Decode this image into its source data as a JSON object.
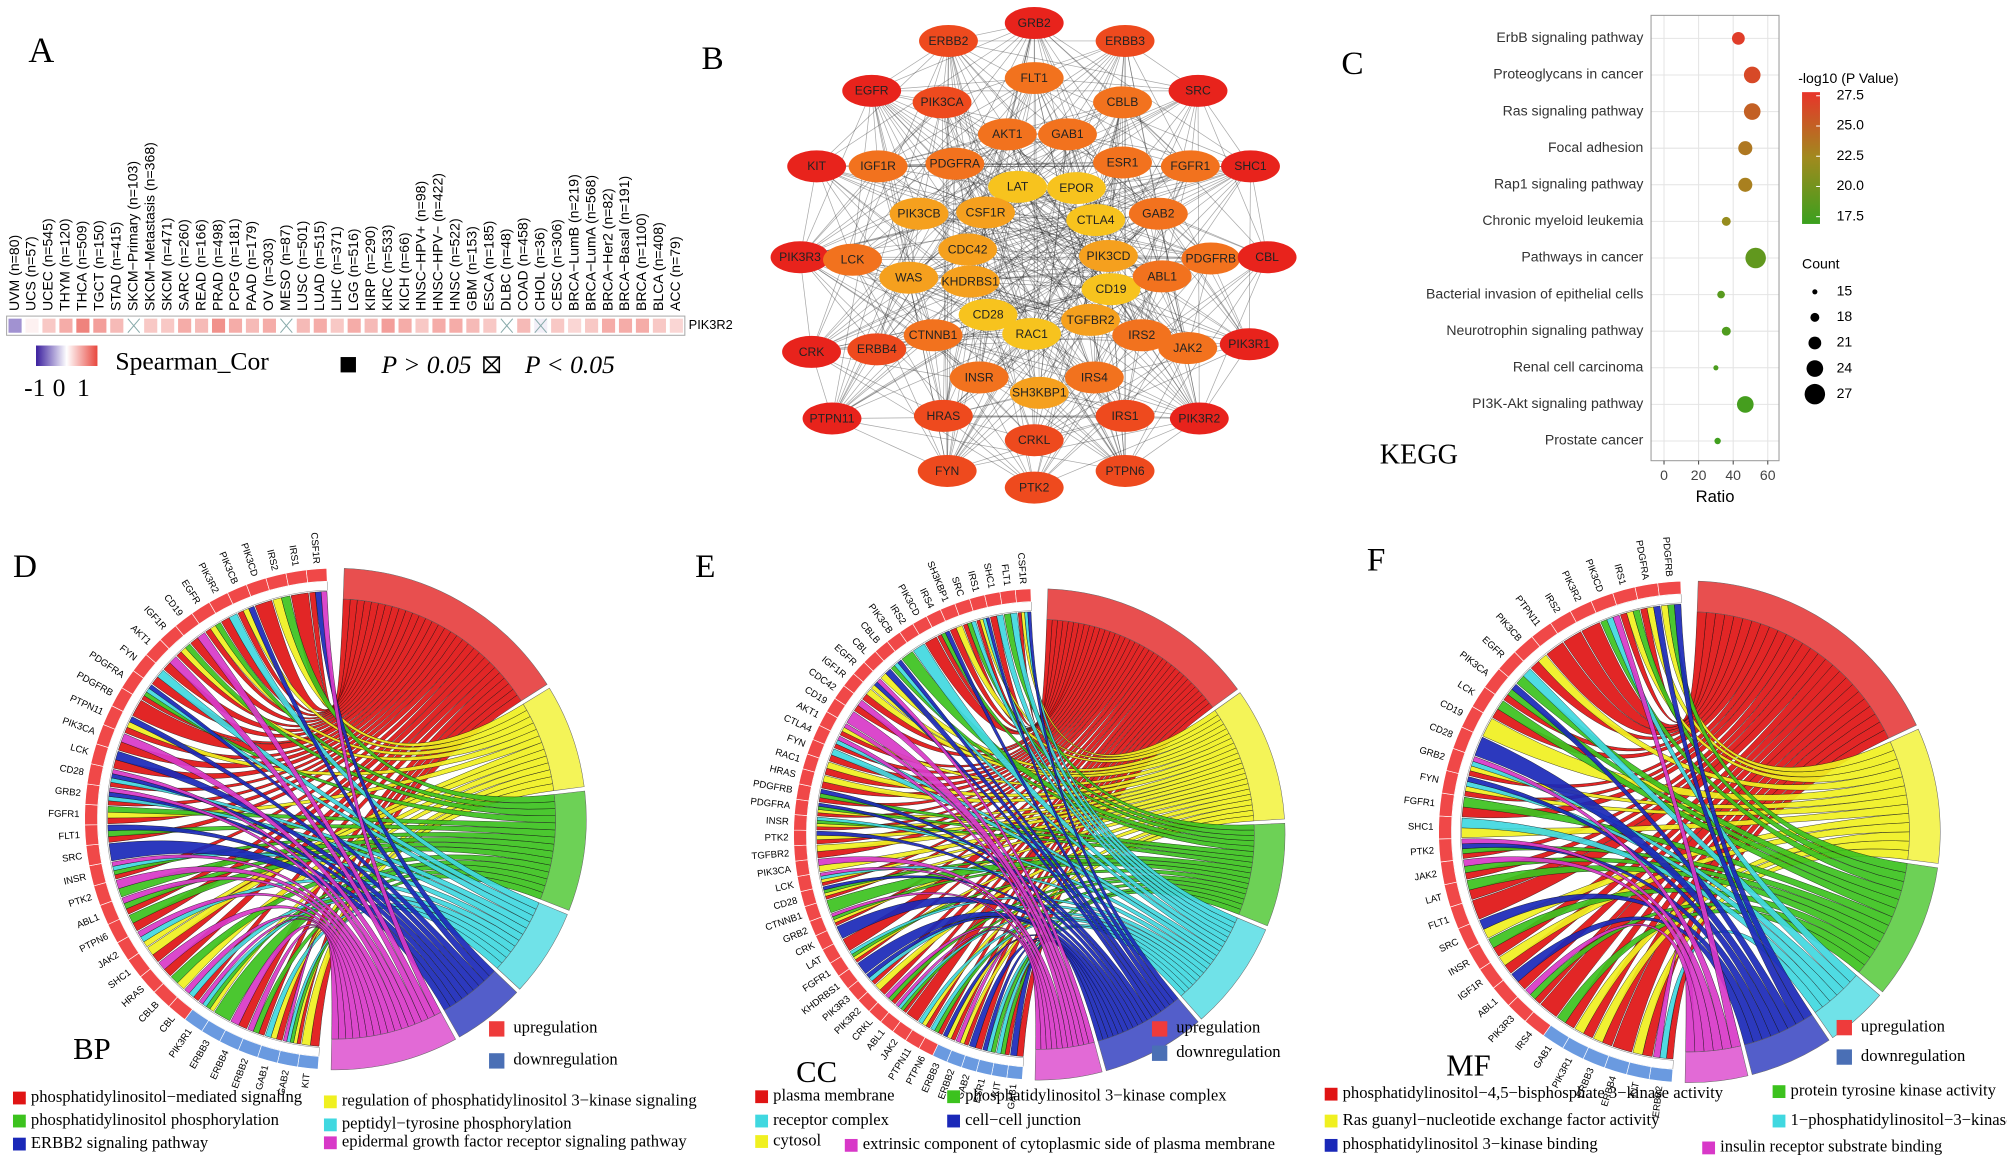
{
  "panel_labels": [
    "A",
    "B",
    "C",
    "D",
    "E",
    "F"
  ],
  "heatmap": {
    "row": "PIK3R2",
    "columns": [
      "UVM (n=80)",
      "UCS (n=57)",
      "UCEC (n=545)",
      "THYM (n=120)",
      "THCA (n=509)",
      "TGCT (n=150)",
      "STAD (n=415)",
      "SKCM−Primary (n=103)",
      "SKCM−Metastasis (n=368)",
      "SKCM (n=471)",
      "SARC (n=260)",
      "READ (n=166)",
      "PRAD (n=498)",
      "PCPG (n=181)",
      "PAAD (n=179)",
      "OV (n=303)",
      "MESO (n=87)",
      "LUSC (n=501)",
      "LUAD (n=515)",
      "LIHC (n=371)",
      "LGG (n=516)",
      "KIRP (n=290)",
      "KIRC (n=533)",
      "KICH (n=66)",
      "HNSC−HPV+ (n=98)",
      "HNSC−HPV− (n=422)",
      "HNSC (n=522)",
      "GBM (n=153)",
      "ESCA (n=185)",
      "DLBC (n=48)",
      "COAD (n=458)",
      "CHOL (n=36)",
      "CESC (n=306)",
      "BRCA−LumB (n=219)",
      "BRCA−LumA (n=568)",
      "BRCA−Her2 (n=82)",
      "BRCA−Basal (n=191)",
      "BRCA (n=1100)",
      "BLCA (n=408)",
      "ACC (n=79)"
    ],
    "values": [
      -0.35,
      0.05,
      0.2,
      0.3,
      0.45,
      0.35,
      0.25,
      0.02,
      0.2,
      0.2,
      0.3,
      0.25,
      0.4,
      0.3,
      0.25,
      0.3,
      0.05,
      0.25,
      0.3,
      0.2,
      0.3,
      0.25,
      0.35,
      0.3,
      0.2,
      0.3,
      0.3,
      0.25,
      0.2,
      0.05,
      0.25,
      -0.1,
      0.2,
      0.15,
      0.2,
      0.3,
      0.3,
      0.3,
      0.2,
      0.15
    ],
    "p_lt_005": [
      false,
      false,
      false,
      false,
      false,
      false,
      false,
      true,
      false,
      false,
      false,
      false,
      false,
      false,
      false,
      false,
      true,
      false,
      false,
      false,
      false,
      false,
      false,
      false,
      false,
      false,
      false,
      false,
      false,
      true,
      false,
      true,
      false,
      false,
      false,
      false,
      false,
      false,
      false,
      false
    ],
    "legend_title": "Spearman_Cor",
    "scale_ticks": [
      -1,
      0,
      1
    ],
    "p_labels": [
      "P > 0.05",
      "P < 0.05"
    ]
  },
  "network": {
    "nodes": [
      {
        "label": "GRB2",
        "color": "#e8231c"
      },
      {
        "label": "ERBB2",
        "color": "#ee4a1e"
      },
      {
        "label": "ERBB3",
        "color": "#ee4a1e"
      },
      {
        "label": "FLT1",
        "color": "#f2721e"
      },
      {
        "label": "EGFR",
        "color": "#e8231c"
      },
      {
        "label": "PIK3CA",
        "color": "#ee4a1e"
      },
      {
        "label": "CBLB",
        "color": "#f2721e"
      },
      {
        "label": "SRC",
        "color": "#e8231c"
      },
      {
        "label": "AKT1",
        "color": "#f2721e"
      },
      {
        "label": "GAB1",
        "color": "#f2721e"
      },
      {
        "label": "KIT",
        "color": "#e8231c"
      },
      {
        "label": "IGF1R",
        "color": "#f2721e"
      },
      {
        "label": "PDGFRA",
        "color": "#f2721e"
      },
      {
        "label": "ESR1",
        "color": "#f2721e"
      },
      {
        "label": "FGFR1",
        "color": "#f2721e"
      },
      {
        "label": "SHC1",
        "color": "#e8231c"
      },
      {
        "label": "LAT",
        "color": "#f7c31e"
      },
      {
        "label": "EPOR",
        "color": "#f7c31e"
      },
      {
        "label": "PIK3CB",
        "color": "#f5a01e"
      },
      {
        "label": "CSF1R",
        "color": "#f5a01e"
      },
      {
        "label": "GAB2",
        "color": "#f2721e"
      },
      {
        "label": "CTLA4",
        "color": "#f7c31e"
      },
      {
        "label": "CDC42",
        "color": "#f5a01e"
      },
      {
        "label": "PIK3CD",
        "color": "#f5a01e"
      },
      {
        "label": "PIK3R3",
        "color": "#e8231c"
      },
      {
        "label": "LCK",
        "color": "#f2721e"
      },
      {
        "label": "PDGFRB",
        "color": "#f2721e"
      },
      {
        "label": "CBL",
        "color": "#e8231c"
      },
      {
        "label": "WAS",
        "color": "#f5a01e"
      },
      {
        "label": "KHDRBS1",
        "color": "#f5a01e"
      },
      {
        "label": "CD19",
        "color": "#f7c31e"
      },
      {
        "label": "ABL1",
        "color": "#f2721e"
      },
      {
        "label": "CD28",
        "color": "#f7c31e"
      },
      {
        "label": "TGFBR2",
        "color": "#f5a01e"
      },
      {
        "label": "RAC1",
        "color": "#f7c31e"
      },
      {
        "label": "CTNNB1",
        "color": "#f2721e"
      },
      {
        "label": "IRS2",
        "color": "#f2721e"
      },
      {
        "label": "JAK2",
        "color": "#f2721e"
      },
      {
        "label": "CRK",
        "color": "#e8231c"
      },
      {
        "label": "ERBB4",
        "color": "#ee4a1e"
      },
      {
        "label": "PIK3R1",
        "color": "#e8231c"
      },
      {
        "label": "INSR",
        "color": "#f2721e"
      },
      {
        "label": "SH3KBP1",
        "color": "#f5a01e"
      },
      {
        "label": "IRS4",
        "color": "#f2721e"
      },
      {
        "label": "PTPN11",
        "color": "#e8231c"
      },
      {
        "label": "HRAS",
        "color": "#ee4a1e"
      },
      {
        "label": "IRS1",
        "color": "#ee4a1e"
      },
      {
        "label": "PIK3R2",
        "color": "#e8231c"
      },
      {
        "label": "CRKL",
        "color": "#ee4a1e"
      },
      {
        "label": "FYN",
        "color": "#ee4a1e"
      },
      {
        "label": "PTK2",
        "color": "#ee4a1e"
      },
      {
        "label": "PTPN6",
        "color": "#ee4a1e"
      }
    ]
  },
  "chart_data": {
    "type": "scatter",
    "title": "KEGG",
    "categories": [
      "ErbB signaling pathway",
      "Proteoglycans in cancer",
      "Ras signaling pathway",
      "Focal adhesion",
      "Rap1 signaling pathway",
      "Chronic myeloid leukemia",
      "Pathways in cancer",
      "Bacterial invasion of epithelial cells",
      "Neurotrophin signaling pathway",
      "Renal cell carcinoma",
      "PI3K-Akt signaling pathway",
      "Prostate cancer"
    ],
    "values": [
      43,
      51,
      51,
      47,
      47,
      36,
      53,
      33,
      36,
      30,
      47,
      31
    ],
    "counts": [
      21,
      24,
      24,
      22,
      22,
      18,
      27,
      17,
      18,
      15,
      24,
      16
    ],
    "pvalues": [
      27.2,
      26.5,
      25.0,
      23.5,
      23.0,
      21.8,
      19.0,
      18.5,
      18.0,
      17.8,
      17.5,
      17.2
    ],
    "x_label": "Ratio",
    "xlim": [
      -7.5,
      66.5
    ],
    "xticks": [
      0,
      20,
      40,
      60
    ],
    "grid": true,
    "color_title": "-log10 (P Value)",
    "color_lim": [
      16.9,
      27.8
    ],
    "color_ticks": [
      27.5,
      {
        "value": 25,
        "label": "25.0"
      },
      22.5,
      {
        "value": 20,
        "label": "20.0"
      },
      17.5
    ],
    "colors": [
      "#3aa01e",
      "#a08a1e",
      "#e8342a"
    ],
    "size_title": "Count",
    "size_ticks": [
      15,
      18,
      21,
      24,
      27
    ]
  },
  "chords": [
    {
      "label": "BP",
      "legend": [
        "upregulation",
        "downregulation"
      ],
      "terms": [
        {
          "name": "phosphatidylinositol−mediated signaling",
          "color": "#e01414"
        },
        {
          "name": "regulation of phosphatidylinositol 3−kinase signaling",
          "color": "#f0f020"
        },
        {
          "name": "phosphatidylinositol phosphorylation",
          "color": "#3cc21e"
        },
        {
          "name": "peptidyl−tyrosine phosphorylation",
          "color": "#40d8e0"
        },
        {
          "name": "ERBB2 signaling pathway",
          "color": "#1a28b8"
        },
        {
          "name": "epidermal growth factor receptor signaling pathway",
          "color": "#d838c8"
        }
      ],
      "down_genes": [
        "KIT",
        "GAB2",
        "GAB1",
        "ERBB2",
        "ERBB4",
        "ERBB3",
        "PIK3R1"
      ],
      "up_genes": [
        "CBL",
        "CBLB",
        "HRAS",
        "SHC1",
        "JAK2",
        "PTPN6",
        "ABL1",
        "PTK2",
        "INSR",
        "SRC",
        "FLT1",
        "FGFR1",
        "GRB2",
        "CD28",
        "LCK",
        "PIK3CA",
        "PTPN11",
        "PDGFRB",
        "PDGFRA",
        "FYN",
        "AKT1",
        "IGF1R",
        "CD19",
        "EGFR",
        "PIK3R2",
        "PIK3CB",
        "PIK3CD",
        "IRS2",
        "IRS1",
        "CSF1R"
      ]
    },
    {
      "label": "CC",
      "legend": [
        "upregulation",
        "downregulation"
      ],
      "terms": [
        {
          "name": "plasma membrane",
          "color": "#e01414"
        },
        {
          "name": "cytosol",
          "color": "#f0f020"
        },
        {
          "name": "phosphatidylinositol 3−kinase complex",
          "color": "#3cc21e"
        },
        {
          "name": "receptor complex",
          "color": "#40d8e0"
        },
        {
          "name": "cell−cell junction",
          "color": "#1a28b8"
        },
        {
          "name": "extrinsic component of cytoplasmic side of plasma membrane",
          "color": "#d838c8"
        }
      ],
      "down_genes": [
        "GAB1",
        "KIT",
        "ESR1",
        "GAB2",
        "ERBB2",
        "ERBB3"
      ],
      "up_genes": [
        "PTPN6",
        "PTPN11",
        "JAK2",
        "ABL1",
        "CRKL",
        "PIK3R2",
        "PIK3R3",
        "KHDRBS1",
        "FGFR1",
        "LAT",
        "CRK",
        "GRB2",
        "CTNNB1",
        "CD28",
        "LCK",
        "PIK3CA",
        "TGFBR2",
        "PTK2",
        "INSR",
        "PDGFRA",
        "PDGFRB",
        "HRAS",
        "RAC1",
        "FYN",
        "CTLA4",
        "AKT1",
        "CD19",
        "CDC42",
        "IGF1R",
        "EGFR",
        "CBL",
        "CBLB",
        "PIK3CB",
        "IRS2",
        "PIK3CD",
        "IRS4",
        "SH3KBP1",
        "SRC",
        "IRS1",
        "SHC1",
        "FLT1",
        "CSF1R"
      ]
    },
    {
      "label": "MF",
      "legend": [
        "upregulation",
        "downregulation"
      ],
      "terms": [
        {
          "name": "phosphatidylinositol−4,5−bisphosphate 3−kinase activity",
          "color": "#e01414"
        },
        {
          "name": "Ras guanyl−nucleotide exchange factor activity",
          "color": "#f0f020"
        },
        {
          "name": "protein tyrosine kinase activity",
          "color": "#3cc21e"
        },
        {
          "name": "1−phosphatidylinositol−3−kinase activity",
          "color": "#40d8e0"
        },
        {
          "name": "phosphatidylinositol 3−kinase binding",
          "color": "#1a28b8"
        },
        {
          "name": "insulin receptor substrate binding",
          "color": "#d838c8"
        }
      ],
      "down_genes": [
        "ERBB2",
        "KIT",
        "ERBB4",
        "ERBB3",
        "PIK3R1",
        "GAB1"
      ],
      "up_genes": [
        "IRS4",
        "PIK3R3",
        "ABL1",
        "IGF1R",
        "INSR",
        "SRC",
        "FLT1",
        "LAT",
        "JAK2",
        "PTK2",
        "SHC1",
        "FGFR1",
        "FYN",
        "GRB2",
        "CD28",
        "CD19",
        "LCK",
        "PIK3CA",
        "EGFR",
        "PIK3CB",
        "PTPN11",
        "IRS2",
        "PIK3R2",
        "PIK3CD",
        "IRS1",
        "PDGFRA",
        "PDGFRB"
      ]
    }
  ]
}
